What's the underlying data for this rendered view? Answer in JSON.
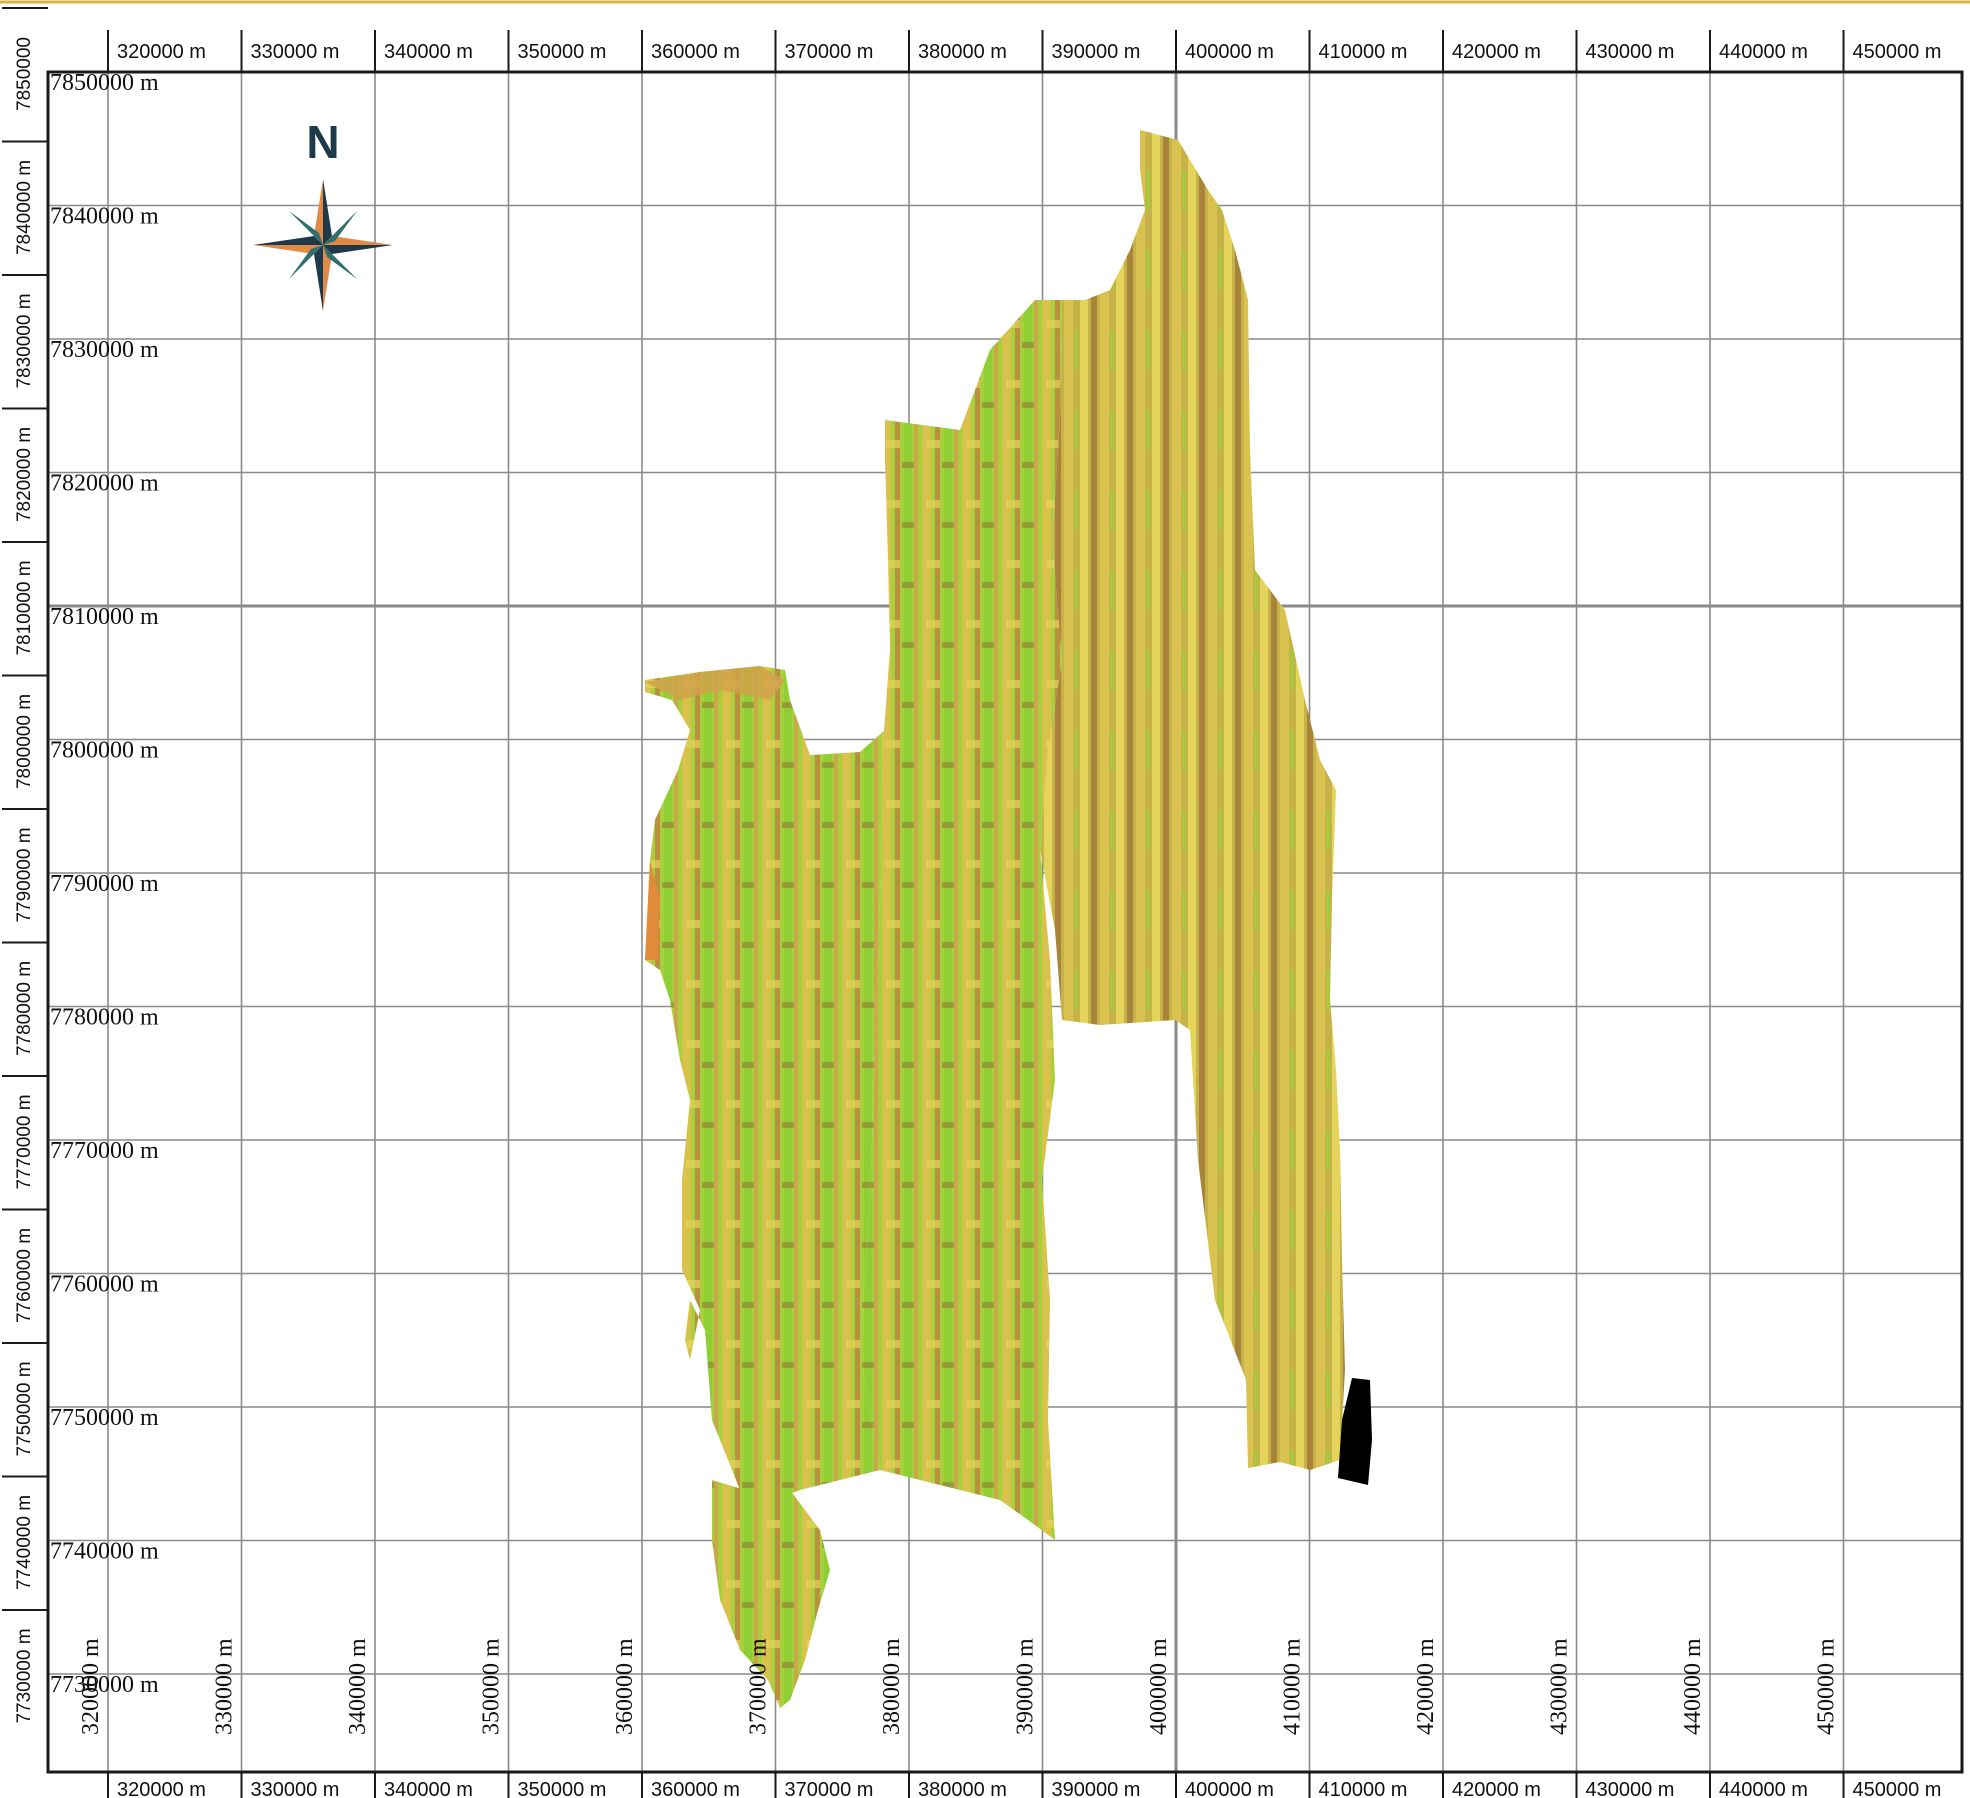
{
  "map": {
    "colors": {
      "frame": "#1a1a1a",
      "grid": "#8a8a8a",
      "top_border": "#d8b43a",
      "terrain_green": "#9bd136",
      "terrain_yellow": "#d9c24a",
      "terrain_brown": "#b48a3c",
      "terrain_orange": "#e08a3a",
      "black_block": "#000000"
    },
    "north_arrow": {
      "letter": "N",
      "colors": {
        "dark": "#1e3a4a",
        "orange": "#e08a45",
        "teal": "#2f6f6f"
      }
    },
    "easting_labels": [
      "320000 m",
      "330000 m",
      "340000 m",
      "350000 m",
      "360000 m",
      "370000 m",
      "380000 m",
      "390000 m",
      "400000 m",
      "410000 m",
      "420000 m",
      "430000 m",
      "440000 m",
      "450000 m"
    ],
    "northing_labels": [
      "7850000 m",
      "7840000 m",
      "7830000 m",
      "7820000 m",
      "7810000 m",
      "7800000 m",
      "7790000 m",
      "7780000 m",
      "7770000 m",
      "7760000 m",
      "7750000 m",
      "7740000 m",
      "7730000 m"
    ],
    "left_axis_labels": [
      "7850000",
      "7840000 m",
      "7830000 m",
      "7820000 m",
      "7810000 m",
      "7800000 m",
      "7790000 m",
      "7780000 m",
      "7770000 m",
      "7760000 m",
      "7750000 m",
      "7740000 m",
      "7730000 m"
    ],
    "inner_easting_labels": [
      "320000 m",
      "330000 m",
      "340000 m",
      "350000 m",
      "360000 m",
      "370000 m",
      "380000 m",
      "390000 m",
      "400000 m",
      "410000 m",
      "420000 m",
      "430000 m",
      "440000 m",
      "450000 m"
    ]
  }
}
